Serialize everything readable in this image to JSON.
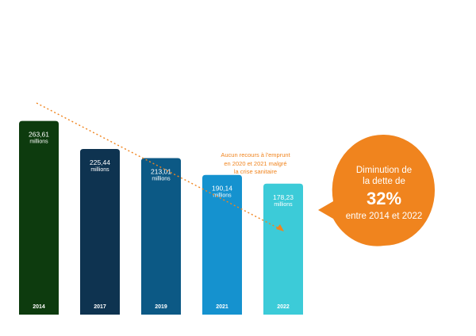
{
  "chart_data": {
    "type": "bar",
    "categories": [
      "2014",
      "2017",
      "2019",
      "2021",
      "2022"
    ],
    "values": [
      263.61,
      225.44,
      213.01,
      190.14,
      178.23
    ],
    "value_labels": [
      "263,61",
      "225,44",
      "213,01",
      "190,14",
      "178,23"
    ],
    "unit_label": "millions",
    "colors": [
      "#0d3b0e",
      "#0e3350",
      "#0c5985",
      "#1592cf",
      "#3ccbd8"
    ],
    "trend_color": "#f0841e",
    "annotation": {
      "lines": [
        "Aucun recours à l'emprunt",
        "en 2020 et 2021 malgré",
        "la crise sanitaire"
      ]
    },
    "callout": {
      "line1": "Diminution de",
      "line2": "la dette de",
      "percent": "32%",
      "line3": "entre 2014 et 2022",
      "color": "#f0841e"
    }
  }
}
